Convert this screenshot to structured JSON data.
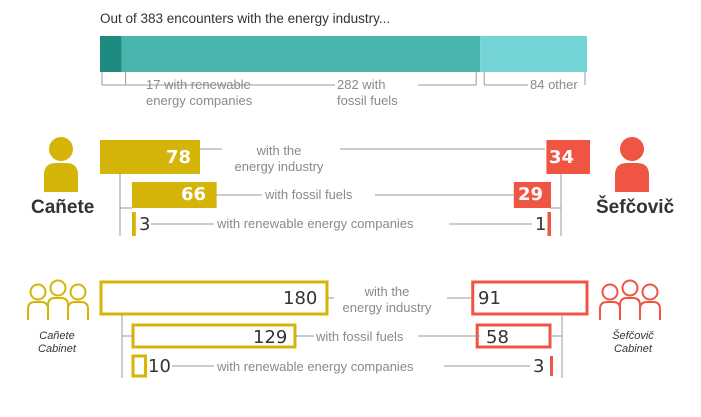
{
  "title": "Out of 383 encounters with the energy industry...",
  "colors": {
    "canete": "#d4b507",
    "sefcovic": "#ef5542",
    "renewable": "#1f8a80",
    "fossil": "#4ab5ac",
    "other": "#74d3d6",
    "connector": "#999999"
  },
  "top_breakdown": {
    "total": 383,
    "segments": [
      {
        "key": "renewable",
        "value": 17,
        "label_line1": "17 with renewable",
        "label_line2": "energy companies"
      },
      {
        "key": "fossil",
        "value": 282,
        "label_line1": "282 with",
        "label_line2": "fossil fuels"
      },
      {
        "key": "other",
        "value": 84,
        "label_line1": "84 other",
        "label_line2": ""
      }
    ]
  },
  "people": {
    "left_name": "Cañete",
    "right_name": "Šefčovič"
  },
  "cabinets": {
    "left_line1": "Cañete",
    "left_line2": "Cabinet",
    "right_line1": "Šefčovič",
    "right_line2": "Cabinet"
  },
  "row_labels": {
    "energy_line1": "with the",
    "energy_line2": "energy industry",
    "fossil": "with fossil fuels",
    "renewable": "with renewable energy companies"
  },
  "chart_data": [
    {
      "type": "bar",
      "title": "Out of 383 encounters with the energy industry...",
      "categories": [
        "17 with renewable energy companies",
        "282 with fossil fuels",
        "84 other"
      ],
      "values": [
        17,
        282,
        84
      ]
    },
    {
      "type": "bar",
      "categories": [
        "with the energy industry",
        "with fossil fuels",
        "with renewable energy companies"
      ],
      "series": [
        {
          "name": "Cañete",
          "values": [
            78,
            66,
            3
          ]
        },
        {
          "name": "Šefčovič",
          "values": [
            34,
            29,
            1
          ]
        }
      ]
    },
    {
      "type": "bar",
      "categories": [
        "with the energy industry",
        "with fossil fuels",
        "with renewable energy companies"
      ],
      "series": [
        {
          "name": "Cañete Cabinet",
          "values": [
            180,
            129,
            10
          ]
        },
        {
          "name": "Šefčovič Cabinet",
          "values": [
            91,
            58,
            3
          ]
        }
      ]
    }
  ]
}
